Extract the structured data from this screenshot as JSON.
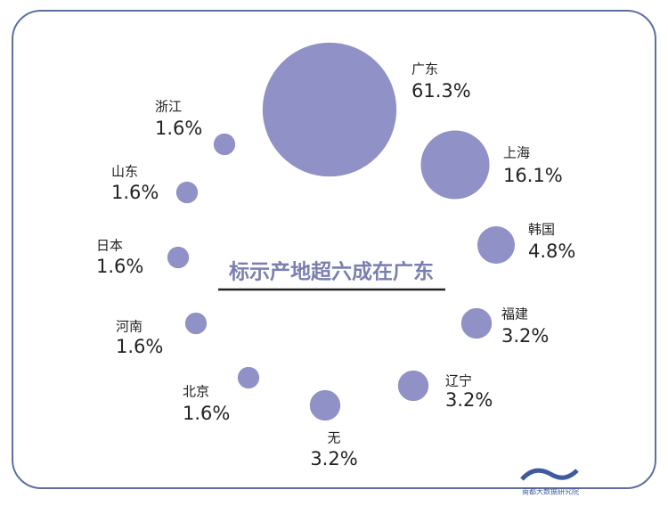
{
  "chart_data": {
    "type": "bubble",
    "title": "标示产地超六成在广东",
    "categories": [
      "广东",
      "上海",
      "韩国",
      "福建",
      "辽宁",
      "无",
      "北京",
      "河南",
      "日本",
      "山东",
      "浙江"
    ],
    "values": [
      61.3,
      16.1,
      4.8,
      3.2,
      3.2,
      3.2,
      1.6,
      1.6,
      1.6,
      1.6,
      1.6
    ],
    "value_labels": [
      "61.3%",
      "16.1%",
      "4.8%",
      "3.2%",
      "3.2%",
      "3.2%",
      "1.6%",
      "1.6%",
      "1.6%",
      "1.6%",
      "1.6%"
    ],
    "color": "#9091c6",
    "source": "南都大数据研究院"
  }
}
